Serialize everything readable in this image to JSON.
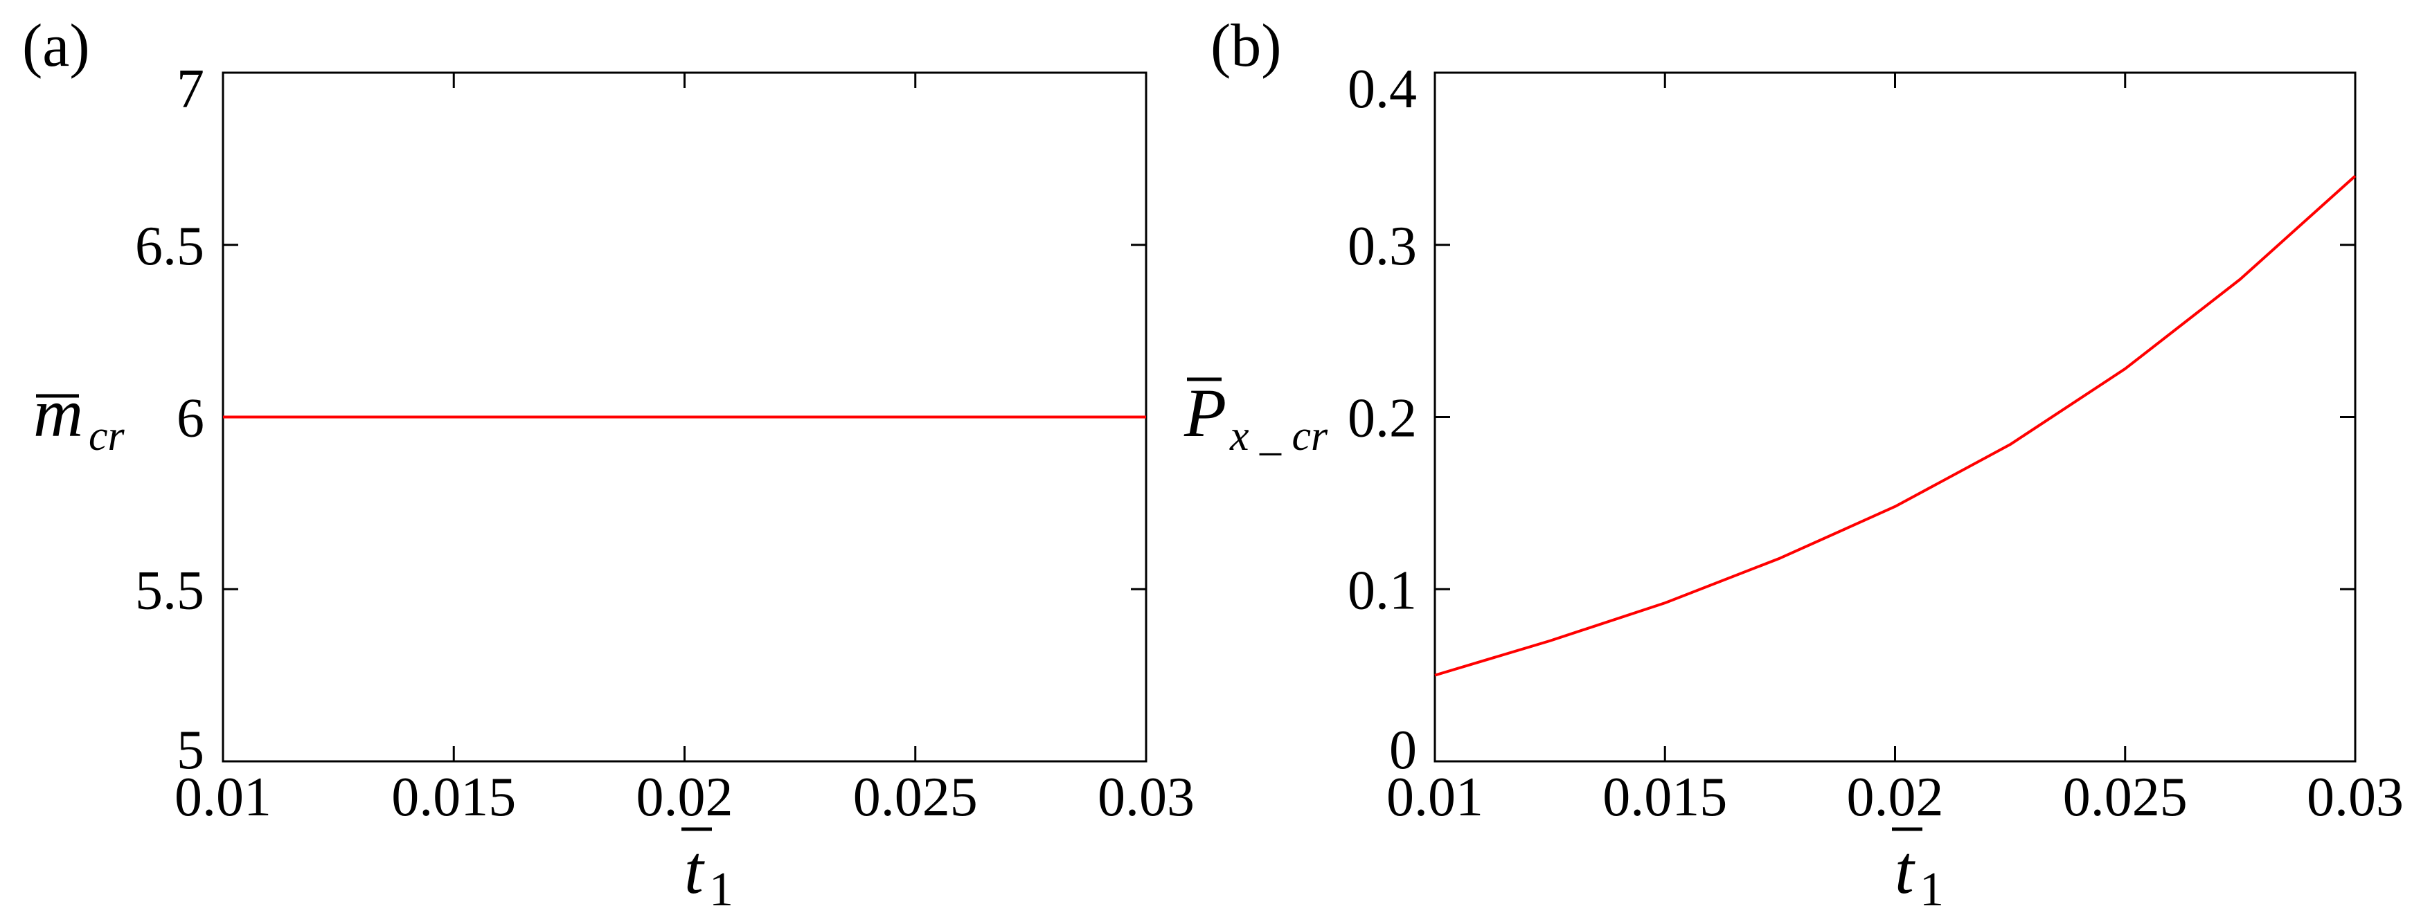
{
  "chart_data": [
    {
      "panel_label": "(a)",
      "type": "line",
      "xlabel": "t",
      "xlabel_sub": "1",
      "ylabel": "m",
      "ylabel_sub": "cr",
      "xlim": [
        0.01,
        0.03
      ],
      "ylim": [
        5,
        7
      ],
      "xticks": [
        0.01,
        0.015,
        0.02,
        0.025,
        0.03
      ],
      "xtick_labels": [
        "0.01",
        "0.015",
        "0.02",
        "0.025",
        "0.03"
      ],
      "yticks": [
        5,
        5.5,
        6,
        6.5,
        7
      ],
      "ytick_labels": [
        "5",
        "5.5",
        "6",
        "6.5",
        "7"
      ],
      "grid": false,
      "series": [
        {
          "color": "#ff0000",
          "x": [
            0.01,
            0.015,
            0.02,
            0.025,
            0.03
          ],
          "y": [
            6,
            6,
            6,
            6,
            6
          ]
        }
      ]
    },
    {
      "panel_label": "(b)",
      "type": "line",
      "xlabel": "t",
      "xlabel_sub": "1",
      "ylabel": "P",
      "ylabel_sub": "x _ cr",
      "xlim": [
        0.01,
        0.03
      ],
      "ylim": [
        0,
        0.4
      ],
      "xticks": [
        0.01,
        0.015,
        0.02,
        0.025,
        0.03
      ],
      "xtick_labels": [
        "0.01",
        "0.015",
        "0.02",
        "0.025",
        "0.03"
      ],
      "yticks": [
        0,
        0.1,
        0.2,
        0.3,
        0.4
      ],
      "ytick_labels": [
        "0",
        "0.1",
        "0.2",
        "0.3",
        "0.4"
      ],
      "grid": false,
      "series": [
        {
          "color": "#ff0000",
          "x": [
            0.01,
            0.0125,
            0.015,
            0.0175,
            0.02,
            0.0225,
            0.025,
            0.0275,
            0.03
          ],
          "y": [
            0.05,
            0.07,
            0.092,
            0.118,
            0.148,
            0.184,
            0.228,
            0.28,
            0.34
          ]
        }
      ]
    }
  ]
}
